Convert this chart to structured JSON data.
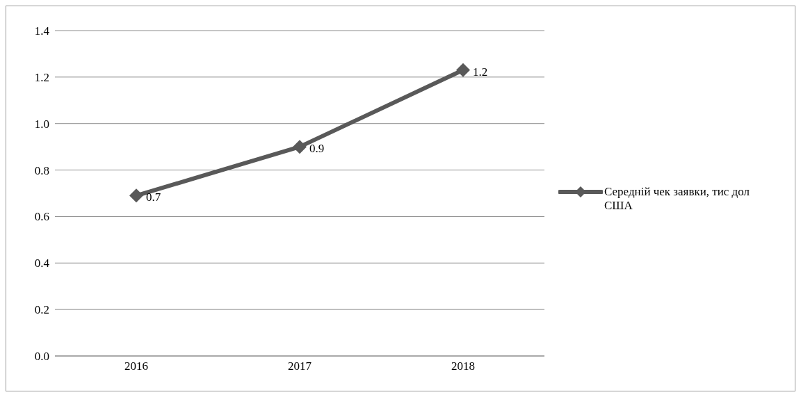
{
  "chart_data": {
    "type": "line",
    "categories": [
      "2016",
      "2017",
      "2018"
    ],
    "series": [
      {
        "name": "Середній чек заявки, тис дол США",
        "color": "#595959",
        "values": [
          0.69,
          0.9,
          1.23
        ],
        "value_labels": [
          "0.7",
          "0.9",
          "1.2"
        ]
      }
    ],
    "ylim": [
      0,
      1.4
    ],
    "yticks": [
      {
        "value": 0,
        "label": "0.0"
      },
      {
        "value": 0.2,
        "label": "0.2"
      },
      {
        "value": 0.4,
        "label": "0.4"
      },
      {
        "value": 0.6,
        "label": "0.6"
      },
      {
        "value": 0.8,
        "label": "0.8"
      },
      {
        "value": 1,
        "label": "1.0"
      },
      {
        "value": 1.2,
        "label": "1.2"
      },
      {
        "value": 1.4,
        "label": "1.4"
      }
    ],
    "grid": "y",
    "legend": "right",
    "marker": "diamond",
    "line_style": "solid"
  }
}
